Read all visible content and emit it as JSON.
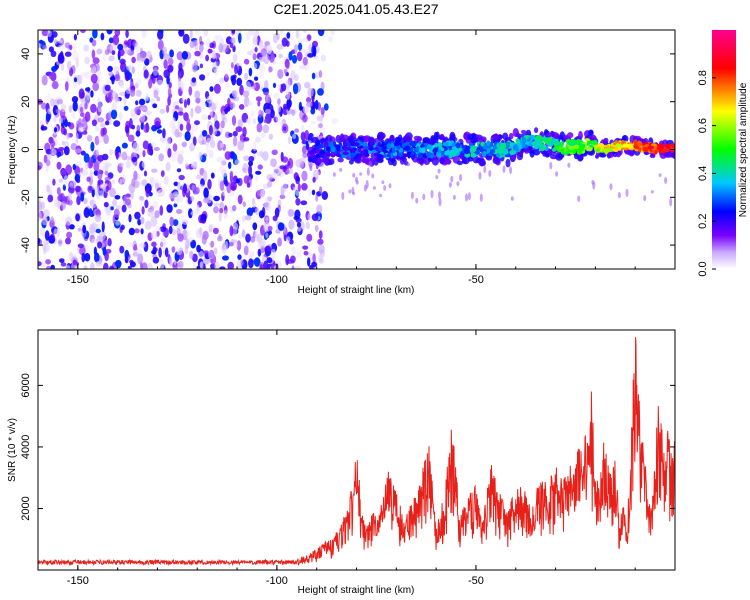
{
  "title": "C2E1.2025.041.05.43.E27",
  "colors": {
    "snr_line": "#e8201a",
    "frame": "#000000",
    "background": "#ffffff",
    "colormap": [
      "#ffffff",
      "#7a00ff",
      "#0000ff",
      "#00c8ff",
      "#00ff00",
      "#ffff00",
      "#ff0000",
      "#ff0090"
    ]
  },
  "chart_data": [
    {
      "type": "heatmap",
      "xlabel": "Height of straight line (km)",
      "ylabel": "Frequency (Hz)",
      "xlim": [
        -160,
        0
      ],
      "ylim": [
        -50,
        50
      ],
      "xticks": [
        -150,
        -100,
        -50
      ],
      "yticks": [
        -40,
        -20,
        0,
        20,
        40
      ],
      "grid": false,
      "colorbar": {
        "label": "Normalized spectral amplitude",
        "range": [
          0,
          1
        ],
        "ticks": [
          "0.0",
          "0.2",
          "0.4",
          "0.6",
          "0.8"
        ]
      },
      "regions": [
        {
          "x_range": [
            -160,
            -88
          ],
          "freq_range": [
            -50,
            50
          ],
          "amplitude": "0.0-0.25 (scattered noise)"
        },
        {
          "x_range": [
            -92,
            -40
          ],
          "freq_range": [
            -6,
            6
          ],
          "center_freq": 0,
          "amplitude": "0.2-0.45"
        },
        {
          "x_range": [
            -40,
            -20
          ],
          "freq_range": [
            -4,
            7
          ],
          "center_freq": 2,
          "amplitude": "0.3-0.6"
        },
        {
          "x_range": [
            -20,
            0
          ],
          "freq_range": [
            -3,
            4
          ],
          "center_freq": 1,
          "amplitude": "0.6-0.95"
        }
      ]
    },
    {
      "type": "line",
      "xlabel": "Height of straight line (km)",
      "ylabel": "SNR (10 * v/v)",
      "xlim": [
        -160,
        0
      ],
      "ylim": [
        0,
        7800
      ],
      "xticks": [
        -150,
        -100,
        -50
      ],
      "yticks": [
        2000,
        4000,
        6000
      ],
      "grid": false,
      "series": [
        {
          "x": [
            -160,
            -150,
            -140,
            -130,
            -120,
            -110,
            -100,
            -95,
            -92,
            -90,
            -88,
            -86,
            -84,
            -82,
            -80,
            -78,
            -76,
            -74,
            -72,
            -70,
            -68,
            -66,
            -64,
            -62,
            -60,
            -58,
            -56,
            -54,
            -52,
            -50,
            -48,
            -46,
            -44,
            -42,
            -40,
            -38,
            -36,
            -34,
            -32,
            -30,
            -28,
            -26,
            -24,
            -22,
            -21,
            -20,
            -19,
            -18,
            -16,
            -15,
            -14,
            -13,
            -12,
            -11,
            -10,
            -9,
            -8,
            -6,
            -4,
            -3,
            -2,
            -1,
            0
          ],
          "y": [
            250,
            250,
            240,
            250,
            240,
            250,
            280,
            350,
            500,
            700,
            900,
            1000,
            1500,
            2000,
            3800,
            1500,
            1800,
            2000,
            3200,
            2500,
            1700,
            2200,
            2800,
            4300,
            1500,
            2400,
            4800,
            1800,
            2300,
            3000,
            2000,
            3500,
            2500,
            1800,
            3000,
            2700,
            1900,
            3000,
            2800,
            3400,
            2900,
            3600,
            4000,
            4500,
            5800,
            3300,
            2500,
            4200,
            3000,
            3700,
            1500,
            2200,
            1200,
            5000,
            7800,
            5500,
            4000,
            2300,
            5900,
            4000,
            4700,
            3800,
            4300
          ]
        }
      ]
    }
  ]
}
